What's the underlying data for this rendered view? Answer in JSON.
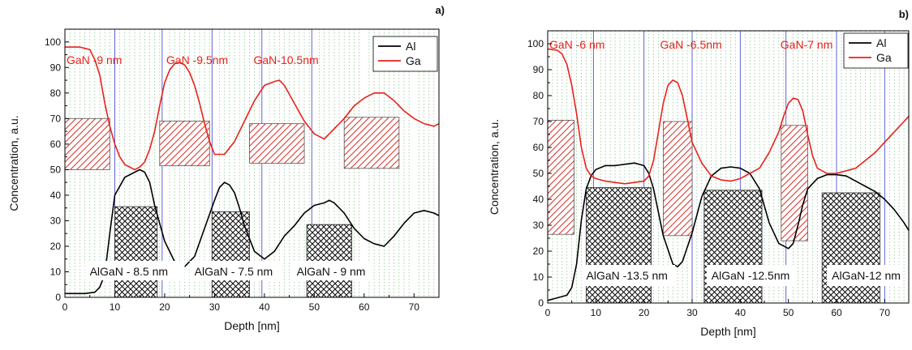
{
  "chart_data": [
    {
      "panel_label": "a)",
      "type": "line",
      "xlabel": "Depth [nm]",
      "ylabel": "Concentration, a.u.",
      "xlim": [
        0,
        75
      ],
      "ylim": [
        0,
        105
      ],
      "xticks": [
        0,
        10,
        20,
        30,
        40,
        50,
        60,
        70
      ],
      "yticks": [
        0,
        10,
        20,
        30,
        40,
        50,
        60,
        70,
        80,
        90,
        100
      ],
      "grid": "vertical dotted green",
      "legend": "top-right",
      "colors": {
        "Al": "#000000",
        "Ga": "#e8211b",
        "hatch_ga": "#d83a34",
        "divider": "#4b55c8"
      },
      "series": [
        {
          "name": "Al",
          "x": [
            0,
            4,
            6,
            7,
            8,
            9,
            10,
            12,
            14,
            15,
            16,
            17,
            18,
            20,
            22,
            24,
            26,
            28,
            30,
            31,
            32,
            33,
            34,
            35,
            36,
            38,
            40,
            42,
            44,
            46,
            48,
            50,
            52,
            53,
            54,
            56,
            58,
            60,
            62,
            64,
            66,
            68,
            70,
            72,
            74,
            75
          ],
          "y": [
            1.5,
            1.5,
            2,
            4,
            9,
            25,
            40,
            47,
            49,
            50,
            49,
            45,
            36,
            22,
            14,
            12,
            16,
            27,
            38,
            43,
            45,
            44,
            41,
            35,
            28,
            18,
            15,
            18,
            24,
            28,
            33,
            36,
            37,
            38,
            37,
            33,
            27,
            23,
            21,
            20,
            24,
            29,
            33,
            34,
            33,
            32
          ]
        },
        {
          "name": "Ga",
          "x": [
            0,
            3,
            5,
            6,
            7,
            8,
            9,
            10,
            11,
            12,
            13,
            14,
            15,
            16,
            17,
            18,
            19,
            20,
            21,
            22,
            23,
            24,
            25,
            26,
            27,
            28,
            29,
            30,
            32,
            34,
            36,
            38,
            40,
            42,
            43,
            44,
            46,
            48,
            50,
            52,
            54,
            56,
            58,
            60,
            62,
            64,
            66,
            68,
            70,
            72,
            74,
            75
          ],
          "y": [
            98,
            98,
            97,
            93,
            87,
            76,
            67,
            60,
            55,
            52,
            51,
            50,
            51,
            53,
            58,
            65,
            75,
            84,
            89,
            91.5,
            92,
            91,
            88,
            83,
            76,
            68,
            61,
            56,
            56,
            61,
            69,
            77,
            83,
            84.5,
            85,
            83,
            76,
            69,
            64,
            62,
            66,
            70,
            75,
            78,
            80,
            80,
            77,
            73,
            70,
            68,
            67,
            68
          ]
        }
      ],
      "ga_labels": [
        {
          "text": "GaN -9 nm",
          "x": 0
        },
        {
          "text": "GaN -9.5nm",
          "x": 20
        },
        {
          "text": "GaN-10.5nm",
          "x": 37.5
        }
      ],
      "algan_labels": [
        {
          "text": "AlGaN -  8.5 nm",
          "x": 4
        },
        {
          "text": "AlGaN - 7.5 nm",
          "x": 25
        },
        {
          "text": "AlGaN - 9 nm",
          "x": 45.5
        }
      ],
      "ga_boxes": [
        {
          "x0": 0,
          "x1": 9,
          "y0": 50,
          "y1": 70
        },
        {
          "x0": 19,
          "x1": 29,
          "y0": 51.5,
          "y1": 69
        },
        {
          "x0": 37,
          "x1": 48,
          "y0": 52.5,
          "y1": 68
        },
        {
          "x0": 56,
          "x1": 67,
          "y0": 50.5,
          "y1": 70.5
        }
      ],
      "al_boxes": [
        {
          "x0": 10,
          "x1": 18.5,
          "y0": 0,
          "y1": 35.5
        },
        {
          "x0": 29.5,
          "x1": 37,
          "y0": 0,
          "y1": 33.5
        },
        {
          "x0": 48.5,
          "x1": 57.5,
          "y0": 0,
          "y1": 28.5
        }
      ],
      "dividers": [
        10,
        19.5,
        29.5,
        39.5,
        49.5
      ]
    },
    {
      "panel_label": "b)",
      "type": "line",
      "xlabel": "Depth [nm]",
      "ylabel": "Concentration, a.u.",
      "xlim": [
        0,
        75
      ],
      "ylim": [
        0,
        105
      ],
      "xticks": [
        0,
        10,
        20,
        30,
        40,
        50,
        60,
        70
      ],
      "yticks": [
        0,
        10,
        20,
        30,
        40,
        50,
        60,
        70,
        80,
        90,
        100
      ],
      "grid": "vertical dotted green",
      "legend": "top-right",
      "colors": {
        "Al": "#000000",
        "Ga": "#e8211b",
        "hatch_ga": "#d83a34",
        "divider": "#4b55c8"
      },
      "series": [
        {
          "name": "Al",
          "x": [
            0,
            2,
            4,
            5,
            6,
            7,
            8,
            9,
            10,
            12,
            14,
            16,
            18,
            20,
            21,
            22,
            24,
            26,
            27,
            28,
            30,
            32,
            34,
            36,
            38,
            40,
            42,
            44,
            46,
            48,
            50,
            51,
            52,
            53,
            54,
            56,
            58,
            60,
            62,
            64,
            66,
            68,
            70,
            72,
            74,
            75
          ],
          "y": [
            1,
            2,
            3,
            6,
            15,
            32,
            44,
            49,
            51.5,
            53,
            53,
            53.5,
            54,
            53,
            50,
            44,
            26,
            15,
            14,
            16,
            27,
            41,
            49,
            52,
            52.5,
            52,
            50,
            44,
            31,
            23,
            21,
            23,
            30,
            38,
            44,
            48,
            49.5,
            49.5,
            49,
            47,
            45,
            43,
            40,
            36,
            31,
            28
          ]
        },
        {
          "name": "Ga",
          "x": [
            0,
            2,
            3,
            4,
            5,
            6,
            7,
            8,
            9,
            10,
            12,
            14,
            16,
            18,
            20,
            21,
            22,
            23,
            24,
            25,
            26,
            27,
            28,
            29,
            30,
            32,
            34,
            36,
            38,
            40,
            42,
            44,
            46,
            48,
            49,
            50,
            51,
            52,
            53,
            54,
            55,
            56,
            58,
            60,
            62,
            64,
            66,
            68,
            70,
            72,
            74,
            75
          ],
          "y": [
            98,
            97.5,
            96,
            92,
            84,
            73,
            60,
            52,
            49,
            48,
            47,
            46.5,
            46,
            46.5,
            47,
            49,
            55,
            66,
            77,
            84,
            86,
            85,
            80,
            71,
            62,
            54,
            49,
            47.5,
            47,
            48,
            50,
            52,
            58,
            66,
            72,
            77,
            79,
            78.5,
            74,
            65,
            57,
            52,
            50,
            50,
            51,
            52,
            55,
            58,
            62,
            66,
            70,
            72
          ]
        }
      ],
      "ga_labels": [
        {
          "text": "GaN -6 nm",
          "x": 0
        },
        {
          "text": "GaN -6.5nm",
          "x": 23
        },
        {
          "text": "GaN-7 nm",
          "x": 48
        }
      ],
      "algan_labels": [
        {
          "text": "AlGaN -13.5 nm",
          "x": 7
        },
        {
          "text": "AlGaN -12.5nm",
          "x": 33
        },
        {
          "text": "AlGaN-12 nm",
          "x": 58
        }
      ],
      "ga_boxes": [
        {
          "x0": 0,
          "x1": 5.5,
          "y0": 26.5,
          "y1": 70.5
        },
        {
          "x0": 24,
          "x1": 30,
          "y0": 26,
          "y1": 70
        },
        {
          "x0": 48.5,
          "x1": 54,
          "y0": 24,
          "y1": 68.5
        }
      ],
      "al_boxes": [
        {
          "x0": 8,
          "x1": 21.5,
          "y0": 0,
          "y1": 44.5
        },
        {
          "x0": 32.5,
          "x1": 44.5,
          "y0": 0,
          "y1": 43.5
        },
        {
          "x0": 57,
          "x1": 69,
          "y0": 0,
          "y1": 42.5
        }
      ],
      "dividers": [
        9.5,
        20,
        30,
        40,
        49.5,
        60,
        70
      ]
    }
  ]
}
